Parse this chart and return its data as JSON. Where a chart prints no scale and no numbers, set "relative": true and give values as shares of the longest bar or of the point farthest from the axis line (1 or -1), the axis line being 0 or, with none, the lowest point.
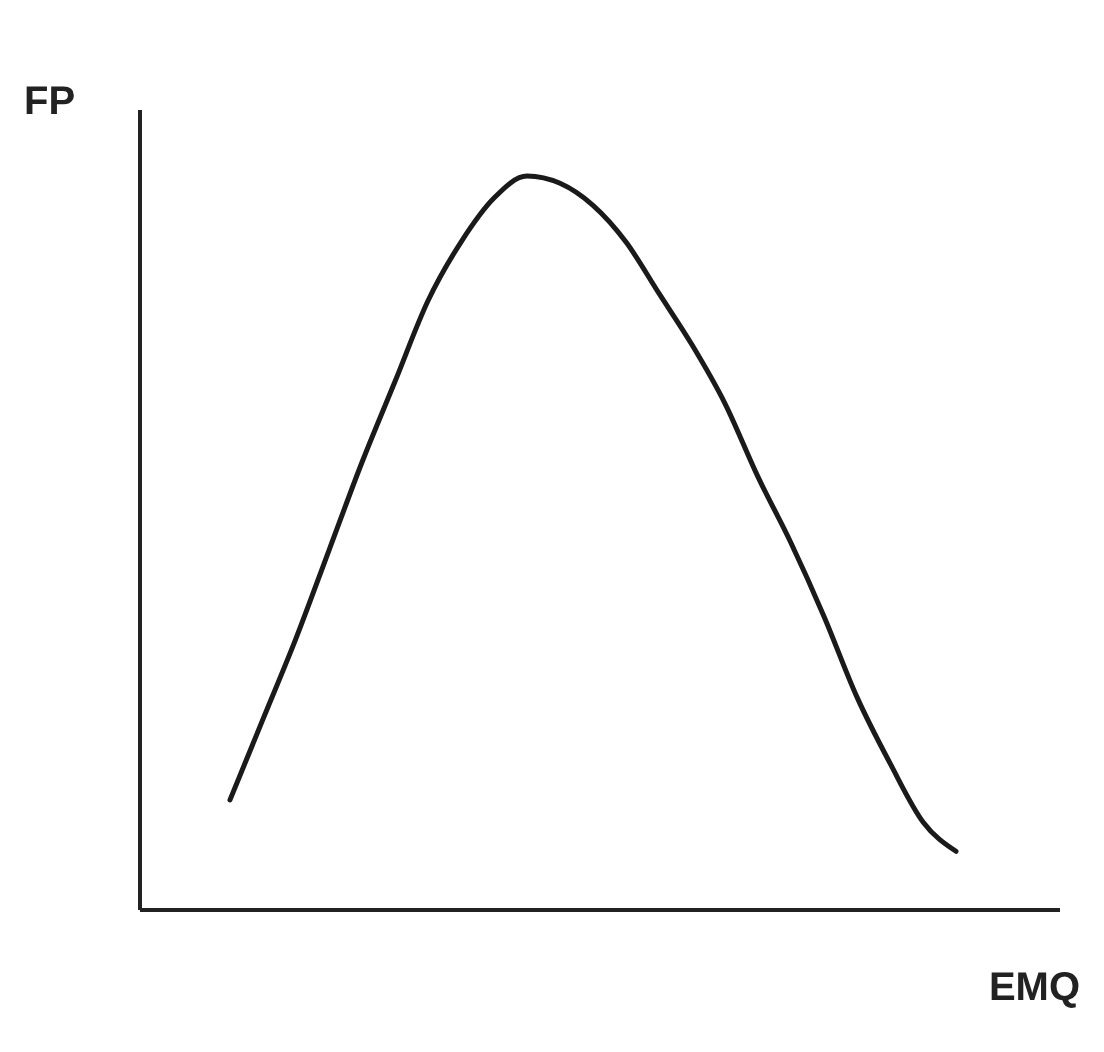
{
  "chart_data": {
    "type": "line",
    "relative": true,
    "xlabel": "EMQ",
    "ylabel": "FP",
    "categories": [
      null,
      null,
      null,
      null,
      null,
      null,
      null,
      null,
      null,
      null,
      null,
      null,
      null,
      null,
      null,
      null,
      null,
      null,
      null,
      null,
      null,
      null,
      null
    ],
    "series": [
      {
        "color": "#1a1a1a",
        "values": [
          0.15,
          0.26,
          0.37,
          0.49,
          0.61,
          0.72,
          0.83,
          0.91,
          0.97,
          1.0,
          0.99,
          0.96,
          0.91,
          0.84,
          0.77,
          0.69,
          0.59,
          0.5,
          0.4,
          0.29,
          0.2,
          0.12,
          0.08
        ]
      }
    ]
  }
}
